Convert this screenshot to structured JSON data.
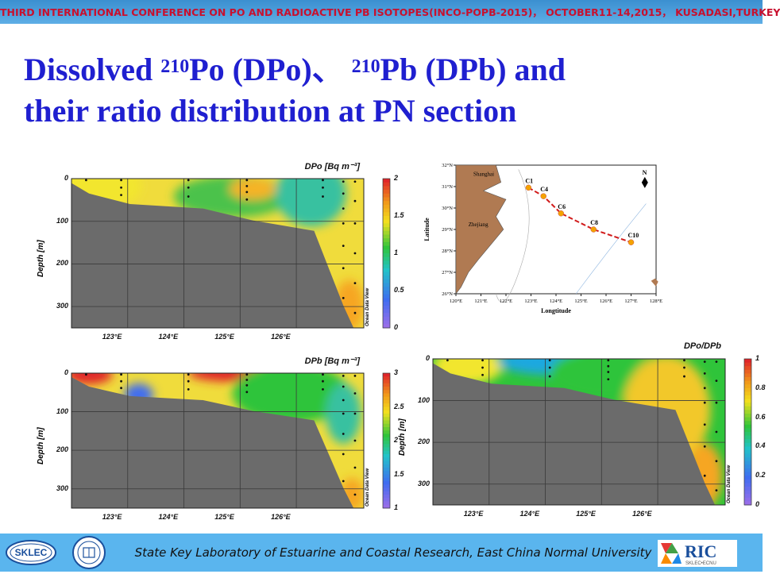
{
  "banner": "THIRD INTERNATIONAL CONFERENCE ON PO AND RADIOACTIVE PB ISOTOPES(INCO-POPB-2015)， OCTOBER11-14,2015， KUSADASI,TURKEY",
  "title": {
    "t1": "Dissolved ",
    "sup1": "210",
    "t2": "Po (DPo)、 ",
    "sup2": "210",
    "t3": "Pb (DPb) and",
    "line2": "their ratio distribution at PN section"
  },
  "footer": {
    "text": "State Key Laboratory of Estuarine and Coastal Research, East China Normal University",
    "logo_left": "SKLEC",
    "logo_right": "RIC",
    "logo_right_sub": "SKLEC•ECNU"
  },
  "colors": {
    "banner_bg": "#4a9fe0",
    "banner_text": "#c8102e",
    "title": "#1f1fd0",
    "footer_bg": "#5ab5ee",
    "seafloor": "#6b6b6b",
    "land": "#b07a52",
    "station_marker": "#f4a300",
    "track_line": "#d11a1a"
  },
  "chart_data": [
    {
      "type": "heatmap",
      "id": "dpo",
      "title": "DPo [Bq m⁻³]",
      "ylabel": "Depth [m]",
      "xlabel": "",
      "x_ticks": [
        "123°E",
        "124°E",
        "125°E",
        "126°E"
      ],
      "y_ticks": [
        0,
        100,
        200,
        300
      ],
      "colorbar": {
        "min": 0,
        "max": 2,
        "ticks": [
          0,
          0.5,
          1,
          1.5,
          2
        ]
      },
      "watermark": "Ocean Data View",
      "xlim": [
        122.0,
        127.2
      ],
      "ylim": [
        0,
        350
      ]
    },
    {
      "type": "heatmap",
      "id": "dpb",
      "title": "DPb [Bq m⁻³]",
      "ylabel": "Depth [m]",
      "xlabel": "",
      "x_ticks": [
        "123°E",
        "124°E",
        "125°E",
        "126°E"
      ],
      "y_ticks": [
        0,
        100,
        200,
        300
      ],
      "colorbar": {
        "min": 1,
        "max": 3,
        "ticks": [
          1,
          1.5,
          2,
          2.5,
          3
        ]
      },
      "watermark": "Ocean Data View",
      "xlim": [
        122.0,
        127.2
      ],
      "ylim": [
        0,
        350
      ]
    },
    {
      "type": "heatmap",
      "id": "ratio",
      "title": "DPo/DPb",
      "ylabel": "Depth [m]",
      "xlabel": "",
      "x_ticks": [
        "123°E",
        "124°E",
        "125°E",
        "126°E"
      ],
      "y_ticks": [
        0,
        100,
        200,
        300
      ],
      "colorbar": {
        "min": 0,
        "max": 1,
        "ticks": [
          0,
          0.2,
          0.4,
          0.6,
          0.8,
          1
        ]
      },
      "watermark": "Ocean Data View",
      "xlim": [
        122.0,
        127.2
      ],
      "ylim": [
        0,
        350
      ]
    }
  ],
  "map": {
    "xlabel": "Longtitude",
    "ylabel": "Latitude",
    "lon_ticks": [
      "120°E",
      "121°E",
      "122°E",
      "123°E",
      "124°E",
      "125°E",
      "126°E",
      "127°E",
      "128°E"
    ],
    "lat_ticks": [
      "32°N",
      "31°N",
      "30°N",
      "29°N",
      "28°N",
      "27°N",
      "26°N"
    ],
    "place_labels": [
      "Shanghai",
      "Zhejiang"
    ],
    "north": "N",
    "stations": [
      {
        "name": "C1",
        "lon": 122.9,
        "lat": 30.95
      },
      {
        "name": "C4",
        "lon": 123.5,
        "lat": 30.55
      },
      {
        "name": "C6",
        "lon": 124.2,
        "lat": 29.75
      },
      {
        "name": "C8",
        "lon": 125.5,
        "lat": 29.0
      },
      {
        "name": "C10",
        "lon": 127.0,
        "lat": 28.4
      }
    ]
  }
}
